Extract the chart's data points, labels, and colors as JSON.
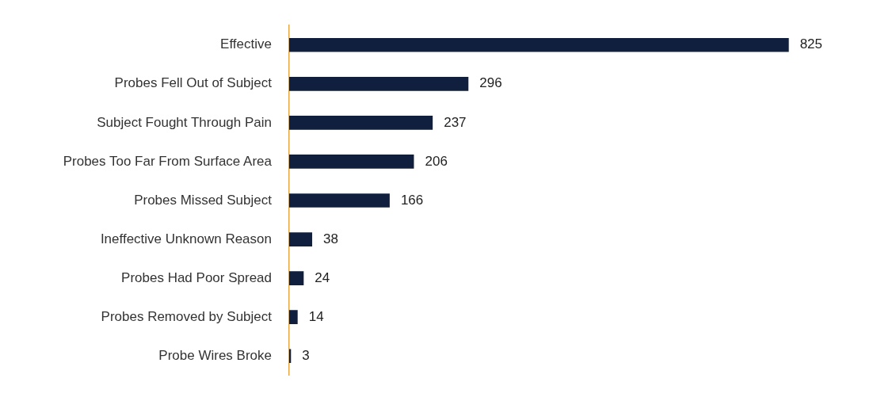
{
  "chart_data": {
    "type": "bar",
    "orientation": "horizontal",
    "categories": [
      "Effective",
      "Probes Fell Out of Subject",
      "Subject Fought Through Pain",
      "Probes Too Far From Surface Area",
      "Probes Missed Subject",
      "Ineffective Unknown Reason",
      "Probes Had Poor Spread",
      "Probes Removed by Subject",
      "Probe Wires Broke"
    ],
    "values": [
      825,
      296,
      237,
      206,
      166,
      38,
      24,
      14,
      3
    ],
    "color": "#0f1f3d",
    "data_labels": true
  }
}
